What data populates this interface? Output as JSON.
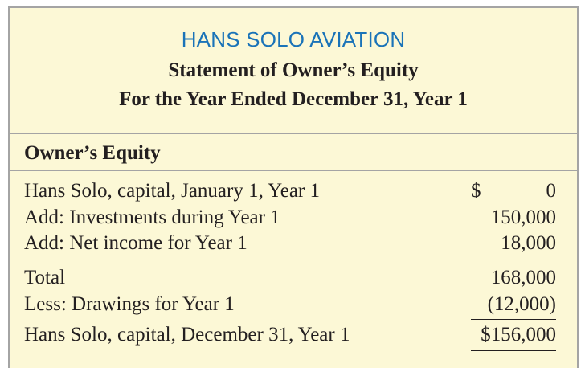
{
  "header": {
    "company": "HANS SOLO AVIATION",
    "statement_title": "Statement of Owner’s Equity",
    "period": "For the Year Ended December 31, Year 1"
  },
  "section": {
    "title": "Owner’s Equity"
  },
  "rows": [
    {
      "label": "Hans Solo, capital, January 1, Year 1",
      "currency": "$",
      "amount": "0"
    },
    {
      "label": "Add: Investments during Year 1",
      "currency": "",
      "amount": "150,000"
    },
    {
      "label": "Add: Net income for Year 1",
      "currency": "",
      "amount": "18,000"
    },
    {
      "label": "Total",
      "currency": "",
      "amount": "168,000"
    },
    {
      "label": "Less: Drawings for Year 1",
      "currency": "",
      "amount": "(12,000)"
    },
    {
      "label": "Hans Solo, capital, December 31, Year 1",
      "currency": "",
      "amount": "$156,000"
    }
  ],
  "colors": {
    "background": "#fcf8d6",
    "border": "#a4a4a4",
    "company_text": "#1a73b8",
    "body_text": "#231f20"
  }
}
